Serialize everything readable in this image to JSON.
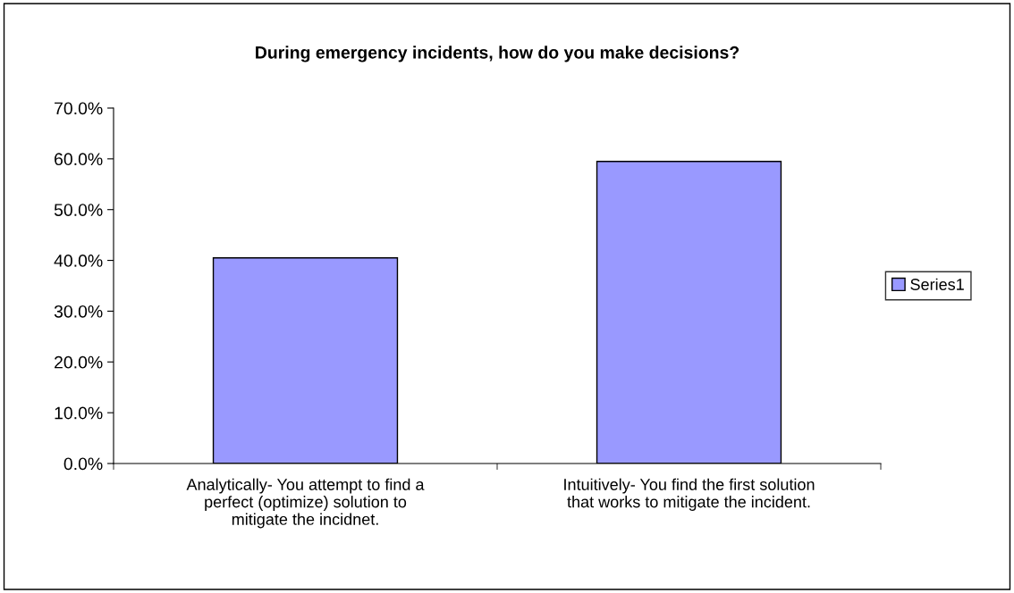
{
  "chart_data": {
    "type": "bar",
    "title": "During emergency incidents, how do you make decisions?",
    "categories": [
      "Analytically- You attempt to find a\nperfect (optimize) solution to\nmitigate the incidnet.",
      "Intuitively- You find the first solution\nthat works to mitigate the incident."
    ],
    "series": [
      {
        "name": "Series1",
        "color": "#9999ff",
        "values": [
          40.5,
          59.5
        ]
      }
    ],
    "ylim": [
      0,
      70
    ],
    "yticks": [
      {
        "value": 0,
        "label": "0.0%"
      },
      {
        "value": 10,
        "label": "10.0%"
      },
      {
        "value": 20,
        "label": "20.0%"
      },
      {
        "value": 30,
        "label": "30.0%"
      },
      {
        "value": 40,
        "label": "40.0%"
      },
      {
        "value": 50,
        "label": "50.0%"
      },
      {
        "value": 60,
        "label": "60.0%"
      },
      {
        "value": 70,
        "label": "70.0%"
      }
    ],
    "grid": false,
    "legend": "right"
  }
}
